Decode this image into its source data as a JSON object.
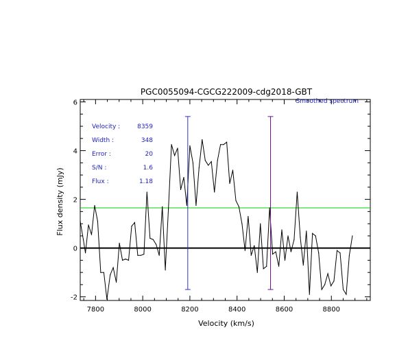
{
  "chart_data": {
    "type": "line",
    "title": "PGC0055094-CGCG222009-cdg2018-GBT",
    "legend_label": "Smoothed spectrum",
    "xlabel": "Velocity (km/s)",
    "ylabel": "Flux density (mJy)",
    "xlim": [
      7735,
      8965
    ],
    "ylim": [
      -2.15,
      6.1
    ],
    "xticks": [
      7800,
      8000,
      8200,
      8400,
      8600,
      8800
    ],
    "yticks": [
      -2,
      0,
      2,
      4,
      6
    ],
    "xtick_labels": [
      "7800",
      "8000",
      "8200",
      "8400",
      "8600",
      "8800"
    ],
    "ytick_labels": [
      "-2",
      "0",
      "2",
      "4",
      "6"
    ],
    "series": [
      {
        "color": "#000000",
        "points": [
          [
            7735,
            1.1
          ],
          [
            7748,
            0.35
          ],
          [
            7757,
            -0.2
          ],
          [
            7770,
            0.95
          ],
          [
            7783,
            0.55
          ],
          [
            7796,
            1.75
          ],
          [
            7809,
            1.1
          ],
          [
            7822,
            -1.0
          ],
          [
            7835,
            -1.0
          ],
          [
            7848,
            -2.1
          ],
          [
            7862,
            -1.1
          ],
          [
            7875,
            -0.8
          ],
          [
            7888,
            -1.4
          ],
          [
            7901,
            0.2
          ],
          [
            7914,
            -0.5
          ],
          [
            7927,
            -0.45
          ],
          [
            7940,
            -0.5
          ],
          [
            7953,
            0.9
          ],
          [
            7966,
            1.05
          ],
          [
            7979,
            -0.3
          ],
          [
            7992,
            -0.3
          ],
          [
            8005,
            -0.25
          ],
          [
            8018,
            2.3
          ],
          [
            8031,
            0.4
          ],
          [
            8044,
            0.35
          ],
          [
            8057,
            0.15
          ],
          [
            8070,
            -0.3
          ],
          [
            8083,
            1.7
          ],
          [
            8096,
            -0.9
          ],
          [
            8109,
            1.6
          ],
          [
            8122,
            4.25
          ],
          [
            8135,
            3.8
          ],
          [
            8148,
            4.1
          ],
          [
            8161,
            2.4
          ],
          [
            8174,
            2.9
          ],
          [
            8187,
            1.75
          ],
          [
            8200,
            4.2
          ],
          [
            8213,
            3.5
          ],
          [
            8226,
            1.75
          ],
          [
            8239,
            3.3
          ],
          [
            8252,
            4.45
          ],
          [
            8265,
            3.6
          ],
          [
            8278,
            3.4
          ],
          [
            8291,
            3.55
          ],
          [
            8304,
            2.3
          ],
          [
            8317,
            3.6
          ],
          [
            8330,
            4.25
          ],
          [
            8343,
            4.25
          ],
          [
            8356,
            4.35
          ],
          [
            8369,
            2.65
          ],
          [
            8382,
            3.2
          ],
          [
            8395,
            1.95
          ],
          [
            8408,
            1.7
          ],
          [
            8421,
            1.0
          ],
          [
            8434,
            -0.1
          ],
          [
            8447,
            1.3
          ],
          [
            8460,
            -0.3
          ],
          [
            8473,
            0.1
          ],
          [
            8486,
            -1.0
          ],
          [
            8499,
            1.0
          ],
          [
            8512,
            -0.85
          ],
          [
            8525,
            -0.75
          ],
          [
            8538,
            1.65
          ],
          [
            8551,
            -0.25
          ],
          [
            8564,
            -0.15
          ],
          [
            8577,
            -0.75
          ],
          [
            8590,
            0.75
          ],
          [
            8603,
            -0.5
          ],
          [
            8616,
            0.5
          ],
          [
            8629,
            -0.15
          ],
          [
            8642,
            0.35
          ],
          [
            8655,
            2.3
          ],
          [
            8668,
            0.45
          ],
          [
            8681,
            -0.7
          ],
          [
            8694,
            0.7
          ],
          [
            8707,
            -1.9
          ],
          [
            8720,
            0.6
          ],
          [
            8733,
            0.5
          ],
          [
            8746,
            -0.2
          ],
          [
            8759,
            -1.7
          ],
          [
            8772,
            -1.5
          ],
          [
            8785,
            -1.05
          ],
          [
            8798,
            -1.55
          ],
          [
            8811,
            -1.35
          ],
          [
            8824,
            -0.1
          ],
          [
            8837,
            -0.2
          ],
          [
            8850,
            -1.7
          ],
          [
            8863,
            -1.9
          ],
          [
            8876,
            -0.3
          ],
          [
            8889,
            0.5
          ]
        ]
      }
    ],
    "zero_line": {
      "y": 0,
      "color": "#000000"
    },
    "rms_line": {
      "y": 1.65,
      "color": "#00d000"
    },
    "markers": [
      {
        "x": 8191,
        "y_bottom": -1.7,
        "y_top": 5.4,
        "color": "#3030c0"
      },
      {
        "x": 8542,
        "y_bottom": -1.7,
        "y_top": 5.4,
        "color": "#6a0f8a"
      }
    ],
    "annotations": [
      {
        "label": "Velocity :",
        "value": "8359"
      },
      {
        "label": "Width :",
        "value": "348"
      },
      {
        "label": "Error :",
        "value": "20"
      },
      {
        "label": "S/N :",
        "value": "1.6"
      },
      {
        "label": "Flux :",
        "value": "1.18"
      }
    ],
    "annotation_color": "#2020c0",
    "grid": false
  }
}
